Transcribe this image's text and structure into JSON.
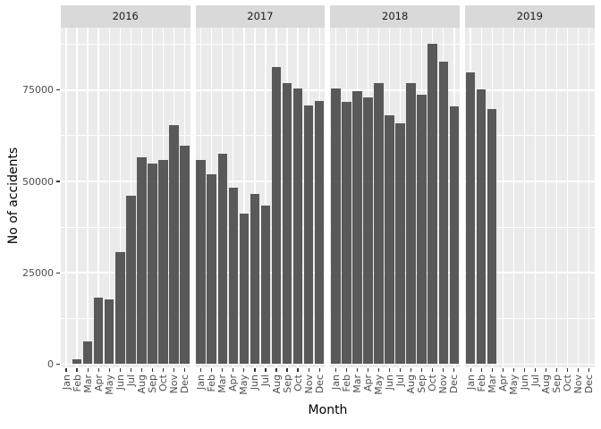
{
  "chart_data": {
    "type": "bar",
    "title": "",
    "xlabel": "Month",
    "ylabel": "No of accidents",
    "categories": [
      "Jan",
      "Feb",
      "Mar",
      "Apr",
      "May",
      "Jun",
      "Jul",
      "Aug",
      "Sep",
      "Oct",
      "Nov",
      "Dec"
    ],
    "facets": [
      {
        "label": "2016",
        "values": [
          null,
          1300,
          6300,
          18300,
          17700,
          30700,
          46100,
          56600,
          54800,
          55800,
          65400,
          59900
        ]
      },
      {
        "label": "2017",
        "values": [
          55800,
          52000,
          57500,
          48300,
          41300,
          46500,
          43400,
          81400,
          77000,
          75400,
          70700,
          72000
        ]
      },
      {
        "label": "2018",
        "values": [
          75400,
          71700,
          74800,
          73000,
          76800,
          68000,
          66000,
          76900,
          73600,
          87600,
          82800,
          70500
        ]
      },
      {
        "label": "2019",
        "values": [
          79800,
          75100,
          69700,
          null,
          null,
          null,
          null,
          null,
          null,
          null,
          null,
          null
        ]
      }
    ],
    "y_ticks": [
      0,
      25000,
      50000,
      75000
    ],
    "y_minor_ticks": [
      12500,
      37500,
      62500,
      87500
    ],
    "ylim": [
      0,
      92000
    ],
    "legend": "none",
    "grid": "white major and minor gridlines on grey panels",
    "colors": {
      "bar": "#595959",
      "panel_bg": "#EBEBEB",
      "strip_bg": "#D9D9D9",
      "strip_text": "#1A1A1A",
      "gridline": "#FFFFFF",
      "axis_text": "#4D4D4D",
      "axis_title": "#000000",
      "tick_mark": "#333333",
      "page_bg": "#FFFFFF"
    }
  }
}
